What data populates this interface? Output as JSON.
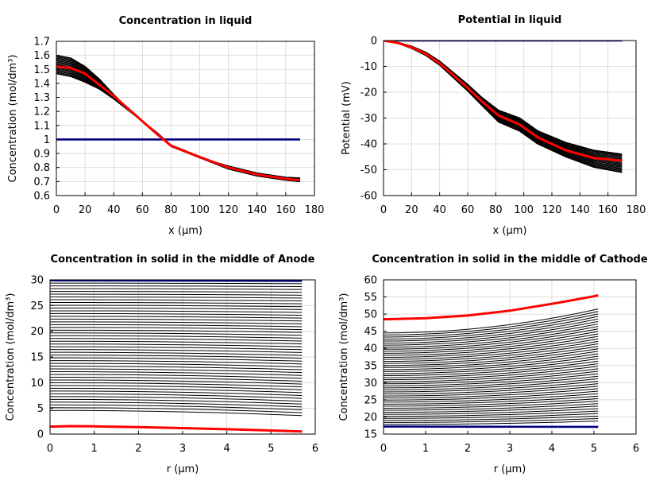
{
  "chart_data": [
    {
      "type": "line",
      "title": "Concentration in liquid",
      "xlabel": "x (µm)",
      "ylabel": "Concentration (mol/dm³)",
      "xlim": [
        0,
        180
      ],
      "ylim": [
        0.6,
        1.7
      ],
      "xticks": [
        "0",
        "20",
        "40",
        "60",
        "80",
        "100",
        "120",
        "140",
        "160",
        "180"
      ],
      "yticks": [
        "0.6",
        "0.7",
        "0.8",
        "0.9",
        "1",
        "1.1",
        "1.2",
        "1.3",
        "1.4",
        "1.5",
        "1.6",
        "1.7"
      ],
      "grid": true,
      "series": [
        {
          "color": "#000080",
          "values": [
            [
              0,
              1.0
            ],
            [
              170,
              1.0
            ]
          ]
        },
        {
          "color": "#000000",
          "values": [
            [
              0,
              1.47
            ],
            [
              10,
              1.45
            ],
            [
              20,
              1.41
            ],
            [
              30,
              1.36
            ],
            [
              40,
              1.29
            ],
            [
              50,
              1.21
            ],
            [
              60,
              1.13
            ],
            [
              70,
              1.05
            ],
            [
              80,
              0.96
            ],
            [
              90,
              0.92
            ],
            [
              100,
              0.87
            ],
            [
              120,
              0.81
            ],
            [
              140,
              0.76
            ],
            [
              160,
              0.73
            ],
            [
              170,
              0.725
            ]
          ]
        },
        {
          "color": "#000000",
          "values": [
            [
              0,
              1.6
            ],
            [
              10,
              1.58
            ],
            [
              20,
              1.52
            ],
            [
              30,
              1.43
            ],
            [
              40,
              1.32
            ],
            [
              50,
              1.22
            ],
            [
              60,
              1.13
            ],
            [
              70,
              1.04
            ],
            [
              80,
              0.95
            ],
            [
              90,
              0.91
            ],
            [
              100,
              0.87
            ],
            [
              120,
              0.79
            ],
            [
              140,
              0.74
            ],
            [
              160,
              0.71
            ],
            [
              170,
              0.7
            ]
          ]
        },
        {
          "color": "#ff0000",
          "values": [
            [
              0,
              1.52
            ],
            [
              10,
              1.51
            ],
            [
              20,
              1.47
            ],
            [
              30,
              1.39
            ],
            [
              40,
              1.31
            ],
            [
              50,
              1.22
            ],
            [
              60,
              1.13
            ],
            [
              70,
              1.04
            ],
            [
              80,
              0.955
            ],
            [
              90,
              0.915
            ],
            [
              100,
              0.875
            ],
            [
              120,
              0.8
            ],
            [
              140,
              0.75
            ],
            [
              160,
              0.72
            ],
            [
              170,
              0.71
            ]
          ]
        }
      ]
    },
    {
      "type": "line",
      "title": "Potential in liquid",
      "xlabel": "x (µm)",
      "ylabel": "Potential (mV)",
      "xlim": [
        0,
        180
      ],
      "ylim": [
        -60,
        0
      ],
      "xticks": [
        "0",
        "20",
        "40",
        "60",
        "80",
        "100",
        "120",
        "140",
        "160",
        "180"
      ],
      "yticks": [
        "0",
        "-10",
        "-20",
        "-30",
        "-40",
        "-50",
        "-60"
      ],
      "grid": true,
      "series": [
        {
          "color": "#000080",
          "values": [
            [
              0,
              0
            ],
            [
              170,
              0
            ]
          ]
        },
        {
          "color": "#000000",
          "values": [
            [
              0,
              0
            ],
            [
              10,
              -0.7
            ],
            [
              20,
              -2.2
            ],
            [
              30,
              -4.5
            ],
            [
              40,
              -8
            ],
            [
              50,
              -12.5
            ],
            [
              60,
              -17
            ],
            [
              70,
              -22
            ],
            [
              82,
              -27
            ],
            [
              97,
              -30
            ],
            [
              110,
              -35
            ],
            [
              130,
              -39.5
            ],
            [
              150,
              -42.5
            ],
            [
              170,
              -44
            ]
          ]
        },
        {
          "color": "#000000",
          "values": [
            [
              0,
              0
            ],
            [
              10,
              -1
            ],
            [
              20,
              -3
            ],
            [
              30,
              -5.7
            ],
            [
              40,
              -9.5
            ],
            [
              50,
              -14.5
            ],
            [
              60,
              -19.5
            ],
            [
              70,
              -25
            ],
            [
              82,
              -31.5
            ],
            [
              97,
              -35
            ],
            [
              110,
              -40
            ],
            [
              130,
              -45
            ],
            [
              150,
              -49
            ],
            [
              170,
              -51
            ]
          ]
        },
        {
          "color": "#ff0000",
          "values": [
            [
              0,
              0
            ],
            [
              10,
              -0.9
            ],
            [
              20,
              -2.6
            ],
            [
              30,
              -5.1
            ],
            [
              40,
              -8.8
            ],
            [
              50,
              -13.5
            ],
            [
              60,
              -18.3
            ],
            [
              70,
              -23.5
            ],
            [
              82,
              -29
            ],
            [
              97,
              -32.5
            ],
            [
              110,
              -37.5
            ],
            [
              130,
              -42.5
            ],
            [
              150,
              -45.5
            ],
            [
              170,
              -46.5
            ]
          ]
        }
      ]
    },
    {
      "type": "line",
      "title": "Concentration in solid in the middle of Anode",
      "xlabel": "r (µm)",
      "ylabel": "Concentration (mol/dm³)",
      "xlim": [
        0,
        6
      ],
      "ylim": [
        0,
        30
      ],
      "xticks": [
        "0",
        "1",
        "2",
        "3",
        "4",
        "5",
        "6"
      ],
      "yticks": [
        "0",
        "5",
        "10",
        "15",
        "20",
        "25",
        "30"
      ],
      "grid": true,
      "family": {
        "count": 48,
        "r_end": 5.7,
        "top": [
          29.9,
          29.8
        ],
        "bottom": [
          4.6,
          3.6
        ]
      },
      "series": [
        {
          "color": "#000080",
          "values": [
            [
              0,
              29.9
            ],
            [
              5.7,
              29.8
            ]
          ]
        },
        {
          "color": "#ff0000",
          "values": [
            [
              0,
              1.45
            ],
            [
              0.5,
              1.55
            ],
            [
              1,
              1.5
            ],
            [
              2,
              1.35
            ],
            [
              3,
              1.15
            ],
            [
              4,
              0.95
            ],
            [
              5,
              0.7
            ],
            [
              5.7,
              0.5
            ]
          ]
        }
      ]
    },
    {
      "type": "line",
      "title": "Concentration in solid in the middle of Cathode",
      "xlabel": "r (µm)",
      "ylabel": "Concentration (mol/dm³)",
      "xlim": [
        0,
        6
      ],
      "ylim": [
        15,
        60
      ],
      "xticks": [
        "0",
        "1",
        "2",
        "3",
        "4",
        "5",
        "6"
      ],
      "yticks": [
        "15",
        "20",
        "25",
        "30",
        "35",
        "40",
        "45",
        "50",
        "55",
        "60"
      ],
      "grid": true,
      "family": {
        "count": 46,
        "r_end": 5.1,
        "top": [
          44.5,
          51.5
        ],
        "bottom": [
          17.8,
          18.8
        ]
      },
      "series": [
        {
          "color": "#000080",
          "values": [
            [
              0,
              17.2
            ],
            [
              5.1,
              17.1
            ]
          ]
        },
        {
          "color": "#ff0000",
          "values": [
            [
              0,
              48.5
            ],
            [
              1,
              48.8
            ],
            [
              2,
              49.6
            ],
            [
              3,
              51
            ],
            [
              4,
              53
            ],
            [
              5,
              55.2
            ],
            [
              5.1,
              55.5
            ]
          ]
        }
      ]
    }
  ]
}
